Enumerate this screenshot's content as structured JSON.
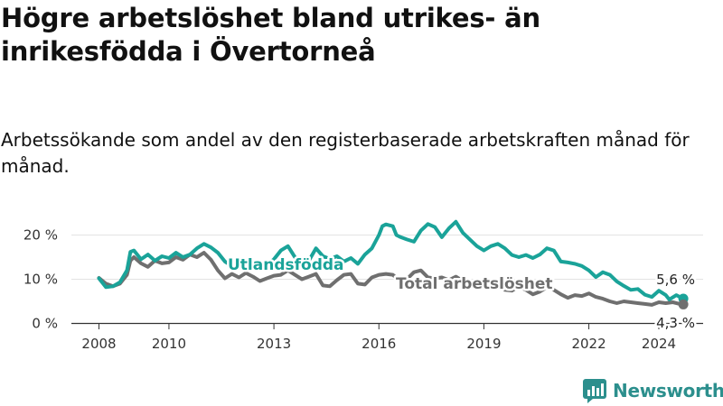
{
  "title": "Högre arbetslöshet bland utrikes- än inrikesfödda i Övertorneå",
  "subtitle": "Arbetssökande som andel av den registerbaserade arbetskraften månad för månad.",
  "logo_text": "Newsworthy",
  "colors": {
    "foreign": "#1aa399",
    "total": "#6f6f6f",
    "grid": "#e3e3e3",
    "axis": "#333333"
  },
  "chart_data": {
    "type": "line",
    "title": "Högre arbetslöshet bland utrikes- än inrikesfödda i Övertorneå",
    "subtitle": "Arbetssökande som andel av den registerbaserade arbetskraften månad för månad.",
    "xlabel": "",
    "ylabel": "",
    "x_ticks": [
      2008,
      2010,
      2013,
      2016,
      2019,
      2022,
      2024
    ],
    "y_ticks": [
      0,
      10,
      20
    ],
    "y_tick_labels": [
      "0 %",
      "10 %",
      "20 %"
    ],
    "xlim": [
      2007.6,
      2025.2
    ],
    "ylim": [
      0,
      24
    ],
    "grid": true,
    "series": [
      {
        "name": "Utlandsfödda",
        "label": "Utlandsfödda",
        "color": "#1aa399",
        "end_label": "5,6 %",
        "points": [
          [
            2008.0,
            10.2
          ],
          [
            2008.2,
            8.2
          ],
          [
            2008.4,
            8.4
          ],
          [
            2008.6,
            9.3
          ],
          [
            2008.8,
            12.0
          ],
          [
            2008.9,
            16.2
          ],
          [
            2009.0,
            16.5
          ],
          [
            2009.2,
            14.5
          ],
          [
            2009.4,
            15.6
          ],
          [
            2009.6,
            14.2
          ],
          [
            2009.8,
            15.2
          ],
          [
            2010.0,
            14.8
          ],
          [
            2010.2,
            16.0
          ],
          [
            2010.4,
            15.0
          ],
          [
            2010.6,
            15.6
          ],
          [
            2010.8,
            17.0
          ],
          [
            2011.0,
            18.0
          ],
          [
            2011.2,
            17.2
          ],
          [
            2011.4,
            16.0
          ],
          [
            2011.6,
            14.0
          ],
          [
            2011.8,
            13.0
          ],
          [
            2012.0,
            12.6
          ],
          [
            2012.2,
            13.4
          ],
          [
            2012.4,
            13.8
          ],
          [
            2012.6,
            14.0
          ],
          [
            2012.8,
            13.2
          ],
          [
            2013.0,
            14.5
          ],
          [
            2013.2,
            16.5
          ],
          [
            2013.4,
            17.5
          ],
          [
            2013.6,
            15.0
          ],
          [
            2013.8,
            13.6
          ],
          [
            2014.0,
            14.2
          ],
          [
            2014.2,
            17.0
          ],
          [
            2014.4,
            15.2
          ],
          [
            2014.6,
            14.6
          ],
          [
            2014.8,
            15.2
          ],
          [
            2015.0,
            14.0
          ],
          [
            2015.2,
            14.8
          ],
          [
            2015.4,
            13.5
          ],
          [
            2015.6,
            15.6
          ],
          [
            2015.8,
            17.0
          ],
          [
            2016.0,
            20.0
          ],
          [
            2016.1,
            22.0
          ],
          [
            2016.2,
            22.4
          ],
          [
            2016.4,
            22.0
          ],
          [
            2016.5,
            20.0
          ],
          [
            2016.6,
            19.6
          ],
          [
            2016.8,
            19.0
          ],
          [
            2017.0,
            18.5
          ],
          [
            2017.2,
            21.0
          ],
          [
            2017.4,
            22.5
          ],
          [
            2017.6,
            21.8
          ],
          [
            2017.8,
            19.5
          ],
          [
            2018.0,
            21.5
          ],
          [
            2018.2,
            23.0
          ],
          [
            2018.4,
            20.5
          ],
          [
            2018.6,
            19.0
          ],
          [
            2018.8,
            17.5
          ],
          [
            2019.0,
            16.5
          ],
          [
            2019.2,
            17.5
          ],
          [
            2019.4,
            18.0
          ],
          [
            2019.6,
            17.0
          ],
          [
            2019.8,
            15.5
          ],
          [
            2020.0,
            15.0
          ],
          [
            2020.2,
            15.5
          ],
          [
            2020.4,
            14.8
          ],
          [
            2020.6,
            15.6
          ],
          [
            2020.8,
            17.0
          ],
          [
            2021.0,
            16.5
          ],
          [
            2021.2,
            14.0
          ],
          [
            2021.4,
            13.8
          ],
          [
            2021.6,
            13.5
          ],
          [
            2021.8,
            13.0
          ],
          [
            2022.0,
            12.0
          ],
          [
            2022.2,
            10.5
          ],
          [
            2022.4,
            11.6
          ],
          [
            2022.6,
            11.0
          ],
          [
            2022.8,
            9.5
          ],
          [
            2023.0,
            8.5
          ],
          [
            2023.2,
            7.6
          ],
          [
            2023.4,
            7.8
          ],
          [
            2023.6,
            6.5
          ],
          [
            2023.8,
            6.0
          ],
          [
            2024.0,
            7.4
          ],
          [
            2024.2,
            6.4
          ],
          [
            2024.3,
            5.4
          ],
          [
            2024.5,
            6.4
          ],
          [
            2024.7,
            5.6
          ]
        ]
      },
      {
        "name": "Total arbetslöshet",
        "label": "Total arbetslöshet",
        "color": "#6f6f6f",
        "end_label": "4,3 %",
        "points": [
          [
            2008.0,
            10.3
          ],
          [
            2008.2,
            9.0
          ],
          [
            2008.4,
            8.4
          ],
          [
            2008.6,
            9.0
          ],
          [
            2008.8,
            11.0
          ],
          [
            2008.9,
            14.2
          ],
          [
            2009.0,
            15.0
          ],
          [
            2009.2,
            13.6
          ],
          [
            2009.4,
            12.8
          ],
          [
            2009.6,
            14.2
          ],
          [
            2009.8,
            13.6
          ],
          [
            2010.0,
            13.8
          ],
          [
            2010.2,
            15.0
          ],
          [
            2010.4,
            14.4
          ],
          [
            2010.6,
            15.6
          ],
          [
            2010.8,
            15.0
          ],
          [
            2011.0,
            16.0
          ],
          [
            2011.2,
            14.4
          ],
          [
            2011.4,
            12.0
          ],
          [
            2011.6,
            10.2
          ],
          [
            2011.8,
            11.2
          ],
          [
            2012.0,
            10.4
          ],
          [
            2012.2,
            11.4
          ],
          [
            2012.4,
            10.6
          ],
          [
            2012.6,
            9.6
          ],
          [
            2012.8,
            10.2
          ],
          [
            2013.0,
            10.8
          ],
          [
            2013.2,
            11.0
          ],
          [
            2013.4,
            12.0
          ],
          [
            2013.6,
            11.0
          ],
          [
            2013.8,
            10.0
          ],
          [
            2014.0,
            10.6
          ],
          [
            2014.2,
            11.2
          ],
          [
            2014.4,
            8.6
          ],
          [
            2014.6,
            8.4
          ],
          [
            2014.8,
            9.8
          ],
          [
            2015.0,
            11.0
          ],
          [
            2015.2,
            11.2
          ],
          [
            2015.4,
            9.0
          ],
          [
            2015.6,
            8.8
          ],
          [
            2015.8,
            10.4
          ],
          [
            2016.0,
            11.0
          ],
          [
            2016.2,
            11.2
          ],
          [
            2016.4,
            11.0
          ],
          [
            2016.6,
            9.6
          ],
          [
            2016.8,
            10.0
          ],
          [
            2017.0,
            11.6
          ],
          [
            2017.2,
            12.0
          ],
          [
            2017.4,
            10.4
          ],
          [
            2017.6,
            10.2
          ],
          [
            2017.8,
            10.4
          ],
          [
            2018.0,
            9.8
          ],
          [
            2018.2,
            10.6
          ],
          [
            2018.4,
            9.6
          ],
          [
            2018.6,
            9.4
          ],
          [
            2018.8,
            9.0
          ],
          [
            2019.0,
            8.6
          ],
          [
            2019.2,
            9.4
          ],
          [
            2019.4,
            8.6
          ],
          [
            2019.6,
            7.6
          ],
          [
            2019.8,
            7.4
          ],
          [
            2020.0,
            8.4
          ],
          [
            2020.2,
            7.6
          ],
          [
            2020.4,
            6.6
          ],
          [
            2020.6,
            7.2
          ],
          [
            2020.8,
            8.2
          ],
          [
            2021.0,
            7.6
          ],
          [
            2021.2,
            6.6
          ],
          [
            2021.4,
            5.8
          ],
          [
            2021.6,
            6.4
          ],
          [
            2021.8,
            6.2
          ],
          [
            2022.0,
            6.8
          ],
          [
            2022.2,
            6.0
          ],
          [
            2022.4,
            5.6
          ],
          [
            2022.6,
            5.0
          ],
          [
            2022.8,
            4.6
          ],
          [
            2023.0,
            5.0
          ],
          [
            2023.2,
            4.8
          ],
          [
            2023.4,
            4.6
          ],
          [
            2023.6,
            4.4
          ],
          [
            2023.8,
            4.2
          ],
          [
            2024.0,
            4.8
          ],
          [
            2024.2,
            4.6
          ],
          [
            2024.4,
            4.8
          ],
          [
            2024.6,
            4.4
          ],
          [
            2024.7,
            4.3
          ]
        ]
      }
    ]
  }
}
